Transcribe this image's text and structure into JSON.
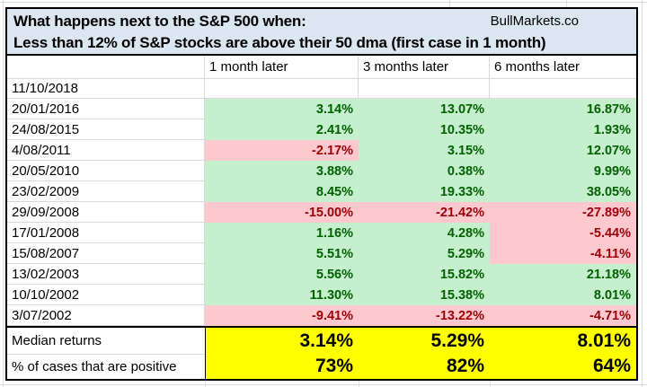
{
  "header": {
    "title": "What happens next to the S&P 500 when:",
    "brand": "BullMarkets.co",
    "subtitle": "Less than 12% of S&P stocks are above their 50 dma (first case in 1 month)"
  },
  "columns": [
    "1 month later",
    "3 months later",
    "6 months later"
  ],
  "rows": [
    {
      "date": "11/10/2018",
      "values": [
        "",
        "",
        ""
      ]
    },
    {
      "date": "20/01/2016",
      "values": [
        "3.14%",
        "13.07%",
        "16.87%"
      ]
    },
    {
      "date": "24/08/2015",
      "values": [
        "2.41%",
        "10.35%",
        "1.93%"
      ]
    },
    {
      "date": "4/08/2011",
      "values": [
        "-2.17%",
        "3.15%",
        "12.07%"
      ]
    },
    {
      "date": "20/05/2010",
      "values": [
        "3.88%",
        "0.38%",
        "9.99%"
      ]
    },
    {
      "date": "23/02/2009",
      "values": [
        "8.45%",
        "19.33%",
        "38.05%"
      ]
    },
    {
      "date": "29/09/2008",
      "values": [
        "-15.00%",
        "-21.42%",
        "-27.89%"
      ]
    },
    {
      "date": "17/01/2008",
      "values": [
        "1.16%",
        "4.28%",
        "-5.44%"
      ]
    },
    {
      "date": "15/08/2007",
      "values": [
        "5.51%",
        "5.29%",
        "-4.11%"
      ]
    },
    {
      "date": "13/02/2003",
      "values": [
        "5.56%",
        "15.82%",
        "21.18%"
      ]
    },
    {
      "date": "10/10/2002",
      "values": [
        "11.30%",
        "15.38%",
        "8.01%"
      ]
    },
    {
      "date": "3/07/2002",
      "values": [
        "-9.41%",
        "-13.22%",
        "-4.71%"
      ]
    }
  ],
  "summary": {
    "median": {
      "label": "Median returns",
      "values": [
        "3.14%",
        "5.29%",
        "8.01%"
      ]
    },
    "positive": {
      "label": "% of cases that are positive",
      "values": [
        "73%",
        "82%",
        "64%"
      ]
    }
  },
  "colors": {
    "header_bg": "#DCE6F1",
    "positive_bg": "#C6EFCE",
    "positive_text": "#006100",
    "negative_bg": "#FFC7CE",
    "negative_text": "#9C0006",
    "summary_bg": "#FFFF00",
    "gridline": "#D9D9D9",
    "border": "#000000"
  }
}
